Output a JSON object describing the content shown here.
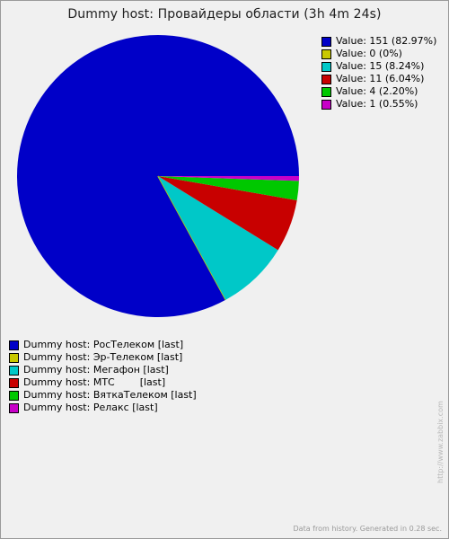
{
  "chart_data": {
    "type": "pie",
    "title": "Dummy host: Провайдеры области (3h 4m 24s)",
    "slices": [
      {
        "value": 151,
        "percent": 82.97,
        "value_label": "Value: 151 (82.97%)",
        "series": "Dummy host: РосТелеком [last]",
        "color": "#0000C8"
      },
      {
        "value": 0,
        "percent": 0,
        "value_label": "Value: 0 (0%)",
        "series": "Dummy host: Эр-Телеком [last]",
        "color": "#C8C800"
      },
      {
        "value": 15,
        "percent": 8.24,
        "value_label": "Value: 15 (8.24%)",
        "series": "Dummy host: Мегафон [last]",
        "color": "#00C8C8"
      },
      {
        "value": 11,
        "percent": 6.04,
        "value_label": "Value: 11 (6.04%)",
        "series": "Dummy host: МТС        [last]",
        "color": "#C80000"
      },
      {
        "value": 4,
        "percent": 2.2,
        "value_label": "Value: 4 (2.20%)",
        "series": "Dummy host: ВяткаТелеком [last]",
        "color": "#00C800"
      },
      {
        "value": 1,
        "percent": 0.55,
        "value_label": "Value: 1 (0.55%)",
        "series": "Dummy host: Релакс [last]",
        "color": "#C800C8"
      }
    ]
  },
  "watermark": "http://www.zabbix.com",
  "footer": "Data from history. Generated in 0.28 sec."
}
